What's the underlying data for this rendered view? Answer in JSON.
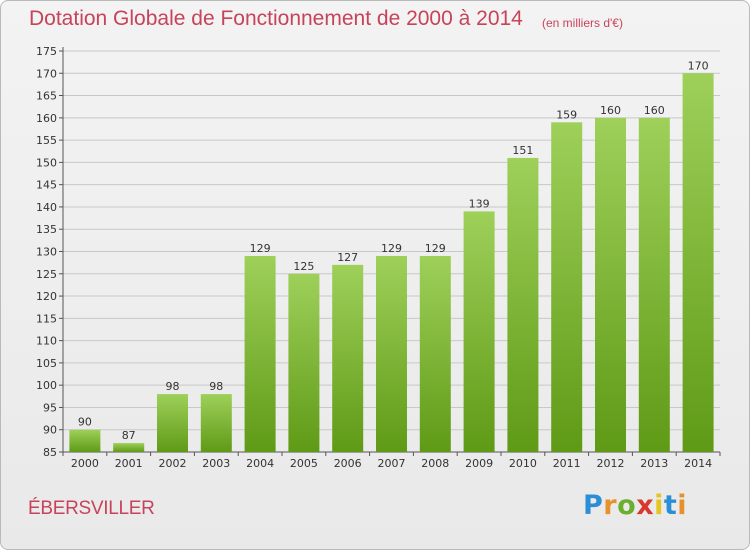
{
  "title": "Dotation Globale de Fonctionnement de 2000 à 2014",
  "subtitle": "(en milliers d'€)",
  "town": "ÉBERSVILLER",
  "logo": {
    "text": "Proxiti",
    "letter_colors": [
      "#2c8fd6",
      "#e8912c",
      "#6cae2e",
      "#d8392f",
      "#e5c51e",
      "#2c8fd6",
      "#e8912c"
    ]
  },
  "colors": {
    "title": "#c7435a",
    "bar_top": "#9ed05a",
    "bar_bottom": "#5f9a16",
    "grid": "#c8c8c8"
  },
  "chart_data": {
    "type": "bar",
    "categories": [
      "2000",
      "2001",
      "2002",
      "2003",
      "2004",
      "2005",
      "2006",
      "2007",
      "2008",
      "2009",
      "2010",
      "2011",
      "2012",
      "2013",
      "2014"
    ],
    "values": [
      90,
      87,
      98,
      98,
      129,
      125,
      127,
      129,
      129,
      139,
      151,
      159,
      160,
      160,
      170
    ],
    "ylim": [
      85,
      175
    ],
    "yticks": [
      85,
      90,
      95,
      100,
      105,
      110,
      115,
      120,
      125,
      130,
      135,
      140,
      145,
      150,
      155,
      160,
      165,
      170,
      175
    ],
    "grid": true,
    "data_labels": true
  }
}
